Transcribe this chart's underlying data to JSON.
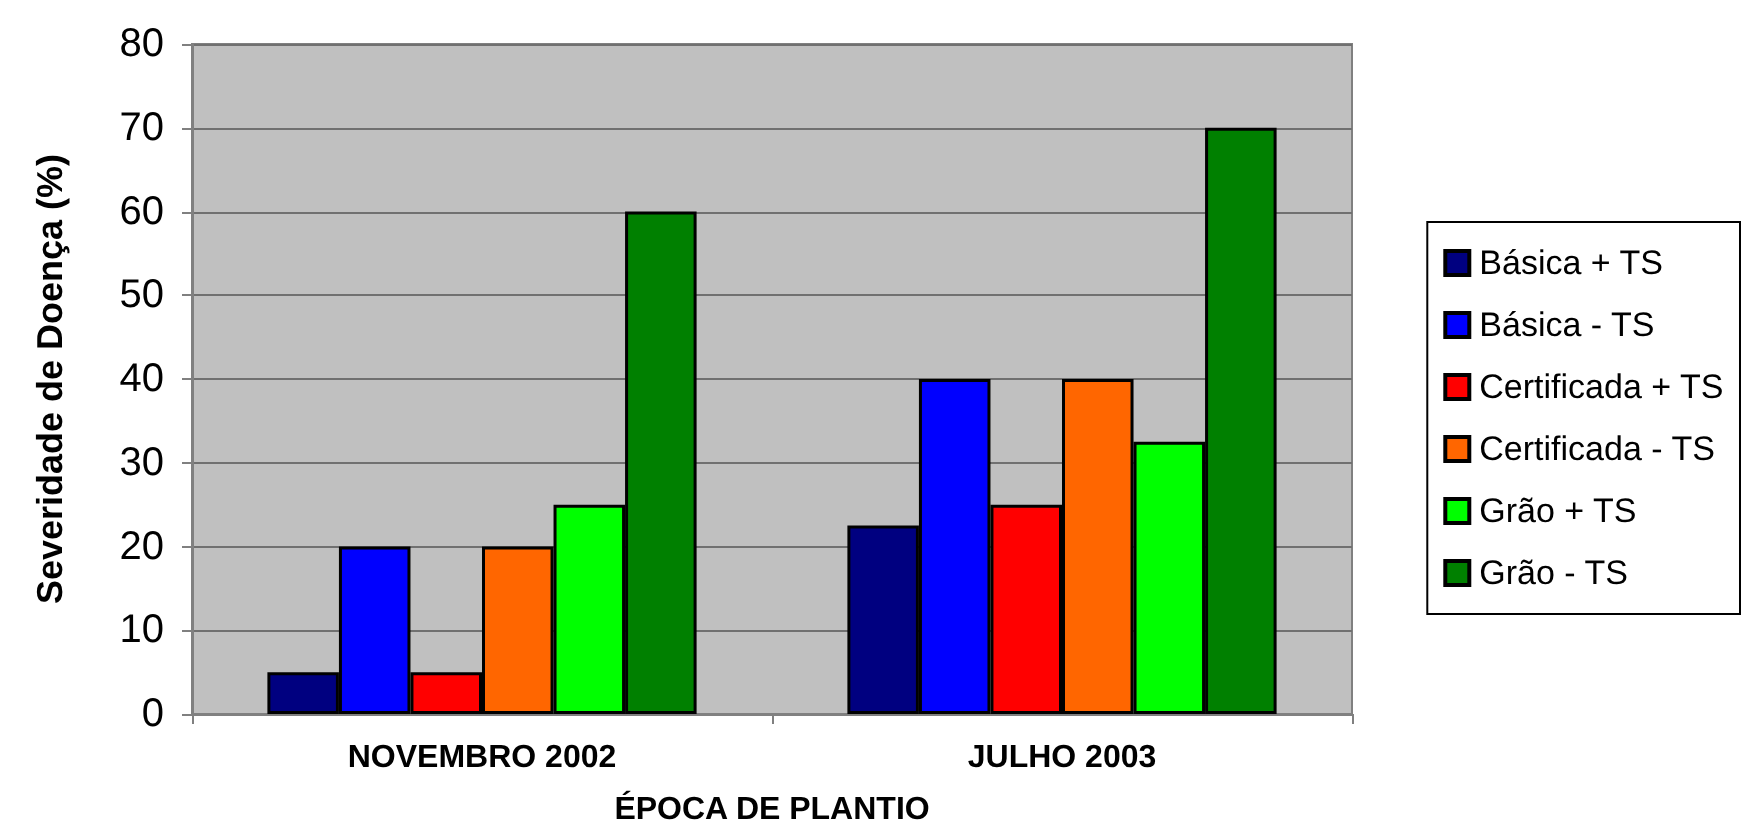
{
  "chart_data": {
    "type": "bar",
    "xlabel": "ÉPOCA DE PLANTIO",
    "ylabel": "Severidade de Doença (%)",
    "categories": [
      "NOVEMBRO 2002",
      "JULHO 2003"
    ],
    "series": [
      {
        "name": "Básica + TS",
        "color": "#000080",
        "values": [
          5,
          22.5
        ]
      },
      {
        "name": "Básica - TS",
        "color": "#0000ff",
        "values": [
          20,
          40
        ]
      },
      {
        "name": "Certificada + TS",
        "color": "#ff0000",
        "values": [
          5,
          25
        ]
      },
      {
        "name": "Certificada - TS",
        "color": "#ff6600",
        "values": [
          20,
          40
        ]
      },
      {
        "name": "Grão + TS",
        "color": "#00ff00",
        "values": [
          25,
          32.5
        ]
      },
      {
        "name": "Grão - TS",
        "color": "#008000",
        "values": [
          60,
          70
        ]
      }
    ],
    "ylim": [
      0,
      80
    ],
    "yticks": [
      0,
      10,
      20,
      30,
      40,
      50,
      60,
      70,
      80
    ],
    "grid": "y",
    "legend": "right"
  }
}
